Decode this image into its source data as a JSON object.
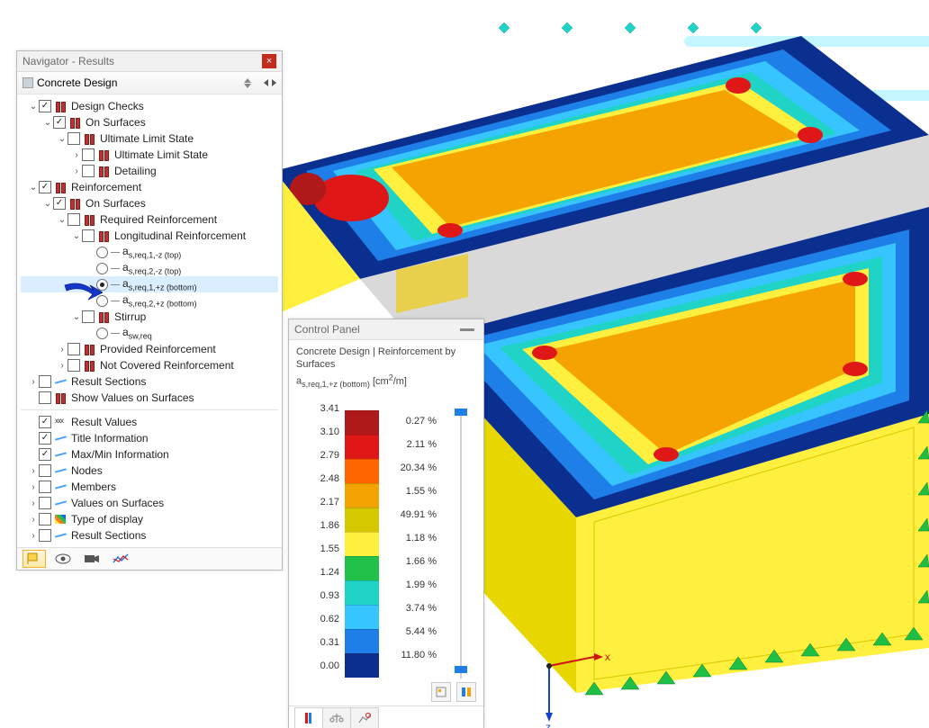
{
  "navigator": {
    "title": "Navigator - Results",
    "dropdown": "Concrete Design",
    "tree": [
      {
        "indent": 0,
        "chev": "v",
        "check": "checked",
        "icon": "surf",
        "label": "Design Checks"
      },
      {
        "indent": 1,
        "chev": "v",
        "check": "checked",
        "icon": "surf",
        "label": "On Surfaces"
      },
      {
        "indent": 2,
        "chev": "v",
        "check": "unchecked",
        "icon": "surf",
        "label": "Ultimate Limit State"
      },
      {
        "indent": 3,
        "chev": ">",
        "check": "unchecked",
        "icon": "surf",
        "label": "Ultimate Limit State"
      },
      {
        "indent": 3,
        "chev": ">",
        "check": "unchecked",
        "icon": "surf",
        "label": "Detailing"
      },
      {
        "indent": 0,
        "chev": "v",
        "check": "checked",
        "icon": "surf",
        "label": "Reinforcement"
      },
      {
        "indent": 1,
        "chev": "v",
        "check": "checked",
        "icon": "surf",
        "label": "On Surfaces"
      },
      {
        "indent": 2,
        "chev": "v",
        "check": "unchecked",
        "icon": "surf",
        "label": "Required Reinforcement"
      },
      {
        "indent": 3,
        "chev": "v",
        "check": "unchecked",
        "icon": "surf",
        "label": "Longitudinal Reinforcement"
      },
      {
        "indent": 4,
        "chev": "",
        "radio": "unchecked",
        "dash": true,
        "label": "a",
        "sub": "s,req,1,-z (top)"
      },
      {
        "indent": 4,
        "chev": "",
        "radio": "unchecked",
        "dash": true,
        "label": "a",
        "sub": "s,req,2,-z (top)"
      },
      {
        "indent": 4,
        "chev": "",
        "radio": "checked",
        "dash": true,
        "label": "a",
        "sub": "s,req,1,+z (bottom)",
        "selected": true
      },
      {
        "indent": 4,
        "chev": "",
        "radio": "unchecked",
        "dash": true,
        "label": "a",
        "sub": "s,req,2,+z (bottom)"
      },
      {
        "indent": 3,
        "chev": "v",
        "check": "unchecked",
        "icon": "surf",
        "label": "Stirrup"
      },
      {
        "indent": 4,
        "chev": "",
        "radio": "unchecked",
        "dash": true,
        "label": "a",
        "sub": "sw,req"
      },
      {
        "indent": 2,
        "chev": ">",
        "check": "unchecked",
        "icon": "surf",
        "label": "Provided Reinforcement"
      },
      {
        "indent": 2,
        "chev": ">",
        "check": "unchecked",
        "icon": "surf",
        "label": "Not Covered Reinforcement"
      },
      {
        "indent": 0,
        "chev": ">",
        "check": "unchecked",
        "icon": "result",
        "label": "Result Sections"
      },
      {
        "indent": 0,
        "chev": "",
        "check": "unchecked",
        "icon": "surf",
        "label": "Show Values on Surfaces"
      },
      {
        "indent": -1,
        "hr": true
      },
      {
        "indent": 0,
        "chev": "",
        "check": "checked",
        "icon": "xxx",
        "label": "Result Values"
      },
      {
        "indent": 0,
        "chev": "",
        "check": "checked",
        "icon": "result",
        "label": "Title Information"
      },
      {
        "indent": 0,
        "chev": "",
        "check": "checked",
        "icon": "result",
        "label": "Max/Min Information"
      },
      {
        "indent": 0,
        "chev": ">",
        "check": "unchecked",
        "icon": "result",
        "label": "Nodes"
      },
      {
        "indent": 0,
        "chev": ">",
        "check": "unchecked",
        "icon": "result",
        "label": "Members"
      },
      {
        "indent": 0,
        "chev": ">",
        "check": "unchecked",
        "icon": "result",
        "label": "Values on Surfaces"
      },
      {
        "indent": 0,
        "chev": ">",
        "check": "unchecked",
        "icon": "map",
        "label": "Type of display"
      },
      {
        "indent": 0,
        "chev": ">",
        "check": "unchecked",
        "icon": "result",
        "label": "Result Sections"
      }
    ]
  },
  "control_panel": {
    "title": "Control Panel",
    "subtitle_line1": "Concrete Design | Reinforcement by Surfaces",
    "subtitle_line2_prefix": "a",
    "subtitle_line2_sub": "s,req,1,+z (bottom)",
    "subtitle_line2_unit_html": " [cm<sup>2</sup>/m]",
    "values": [
      "3.41",
      "3.10",
      "2.79",
      "2.48",
      "2.17",
      "1.86",
      "1.55",
      "1.24",
      "0.93",
      "0.62",
      "0.31",
      "0.00"
    ],
    "percents": [
      "0.27 %",
      "2.11 %",
      "20.34 %",
      "1.55 %",
      "49.91 %",
      "1.18 %",
      "1.66 %",
      "1.99 %",
      "3.74 %",
      "5.44 %",
      "11.80 %"
    ],
    "colors": [
      "#b01919",
      "#e01717",
      "#ff6600",
      "#f4a300",
      "#d6c800",
      "#ffef3e",
      "#22c24a",
      "#1fd4c7",
      "#36c5ff",
      "#1f7fe8",
      "#0b2f8f"
    ]
  },
  "viewport": {
    "axes": {
      "x": "x",
      "z": "z"
    },
    "background": "#ffffff",
    "frame_color": "#b7bcc2",
    "slab_side": "#ffef3e",
    "slab_side_shadow": "#e8d600",
    "beam_color": "#d9d9d9",
    "bar_color": "#baf4ff",
    "support_color": "#1fbf46",
    "heatmap_palette": [
      "#0b2f8f",
      "#1f7fe8",
      "#36c5ff",
      "#1fd4c7",
      "#22c24a",
      "#ffef3e",
      "#f4a300",
      "#ff6600",
      "#e01717",
      "#b01919"
    ]
  }
}
